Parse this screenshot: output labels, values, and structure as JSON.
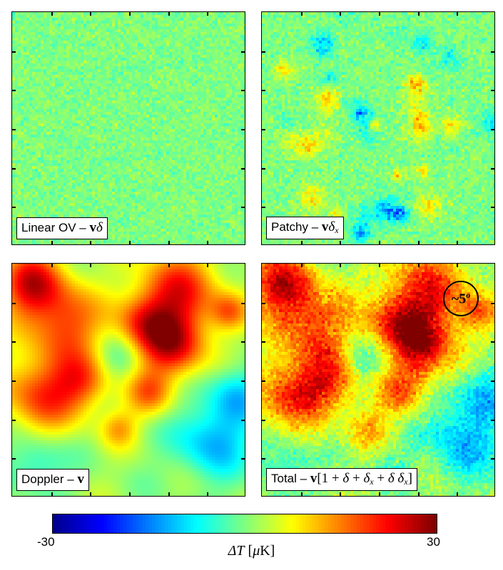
{
  "panels": [
    {
      "label_text": "Linear OV –",
      "label_math": "vδ"
    },
    {
      "label_text": "Patchy –",
      "label_math": "vδx"
    },
    {
      "label_text": "Doppler –",
      "label_math": "v"
    },
    {
      "label_text": "Total –",
      "label_math": "v[1+δ+δx+δδx]"
    }
  ],
  "scale_marker": "~5o",
  "colorbar": {
    "min_label": "-30",
    "max_label": "30",
    "axis_label": "ΔT [μK]",
    "colors": [
      "#00008f",
      "#0000ff",
      "#00ffff",
      "#ffff00",
      "#ff0000",
      "#800000"
    ]
  },
  "chart_data": {
    "type": "heatmap",
    "title": "",
    "panels": [
      "Linear OV – vδ",
      "Patchy – vδx",
      "Doppler – v",
      "Total – v[1+δ+δx+δδx]"
    ],
    "colorbar_range": [
      -30,
      30
    ],
    "colorbar_label": "ΔT [μK]",
    "annotation": "~5o"
  }
}
